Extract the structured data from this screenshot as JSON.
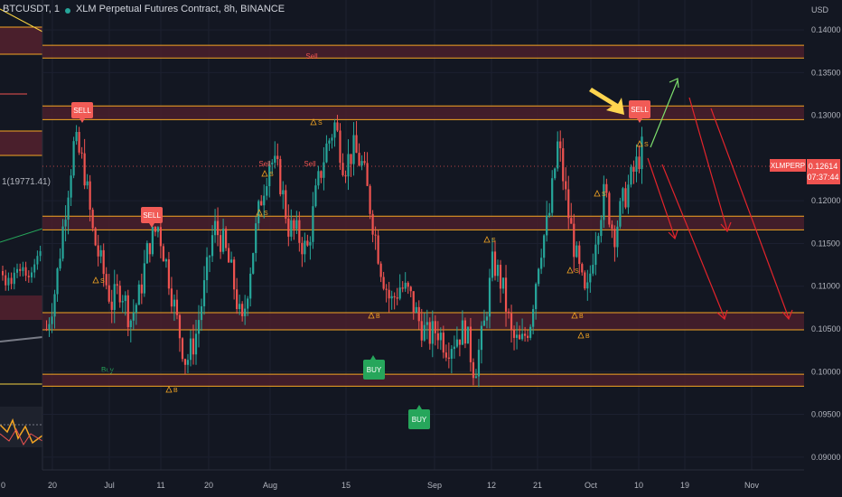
{
  "header": {
    "left_pane_symbol": "BTCUSDT, 1",
    "title": "XLM Perpetual Futures Contract, 8h, BINANCE",
    "left_pane_value": "1(19771.41)",
    "left_pane_axis_tick": "0"
  },
  "colors": {
    "background": "#131722",
    "up": "#26a69a",
    "down": "#ef5350",
    "zone_fill": "#4a1f2c",
    "zone_border": "#f5a623",
    "sell_label": "#f15b56",
    "buy_label": "#26a65b",
    "arrow_up": "#7ee06d",
    "arrow_down": "#e3242b",
    "callout_arrow": "#ffd54f"
  },
  "axis": {
    "currency": "USD",
    "price_ticks": [
      "0.14000",
      "0.13500",
      "0.13000",
      "0.12000",
      "0.11500",
      "0.11000",
      "0.10500",
      "0.10000",
      "0.09500",
      "0.09000"
    ],
    "time_ticks": [
      "20",
      "Jul",
      "11",
      "20",
      "Aug",
      "15",
      "Sep",
      "12",
      "21",
      "Oct",
      "10",
      "19",
      "Nov"
    ],
    "last_price": "0.12614",
    "countdown": "07:37:44",
    "symbol_tag": "XLMPERP"
  },
  "labels": {
    "sell": "SELL",
    "buy": "BUY",
    "small_sell": "Sell",
    "small_buy": "Buy",
    "marker_s": "S",
    "marker_b": "B"
  },
  "chart_data": {
    "type": "candlestick",
    "title": "XLM Perpetual Futures Contract, 8h, BINANCE",
    "y_unit": "USD",
    "ylim": [
      0.0885,
      0.1435
    ],
    "x_ticks": [
      "20",
      "Jul",
      "11",
      "20",
      "Aug",
      "15",
      "Sep",
      "12",
      "21",
      "Oct",
      "10",
      "19",
      "Nov"
    ],
    "last_price": 0.12614,
    "zones": [
      {
        "from": 0.1367,
        "to": 0.1382
      },
      {
        "from": 0.1295,
        "to": 0.1311
      },
      {
        "from": 0.1166,
        "to": 0.1182
      },
      {
        "from": 0.1049,
        "to": 0.1069
      },
      {
        "from": 0.0983,
        "to": 0.0997
      }
    ],
    "close_path": [
      0.105,
      0.11,
      0.119,
      0.127,
      0.124,
      0.116,
      0.112,
      0.108,
      0.11,
      0.106,
      0.109,
      0.115,
      0.117,
      0.112,
      0.106,
      0.101,
      0.104,
      0.11,
      0.117,
      0.115,
      0.111,
      0.105,
      0.113,
      0.12,
      0.125,
      0.123,
      0.117,
      0.116,
      0.114,
      0.121,
      0.126,
      0.129,
      0.124,
      0.126,
      0.124,
      0.118,
      0.112,
      0.108,
      0.11,
      0.109,
      0.106,
      0.104,
      0.105,
      0.103,
      0.104,
      0.105,
      0.1,
      0.105,
      0.113,
      0.11,
      0.104,
      0.103,
      0.106,
      0.114,
      0.118,
      0.127,
      0.119,
      0.113,
      0.108,
      0.116,
      0.121,
      0.116,
      0.12,
      0.123,
      0.126
    ],
    "signals": [
      {
        "type": "sell",
        "price": 0.1323
      },
      {
        "type": "sell",
        "price": 0.12
      },
      {
        "type": "sell",
        "price": 0.1328
      },
      {
        "type": "buy",
        "price": 0.1016
      },
      {
        "type": "buy",
        "price": 0.0965
      }
    ]
  }
}
